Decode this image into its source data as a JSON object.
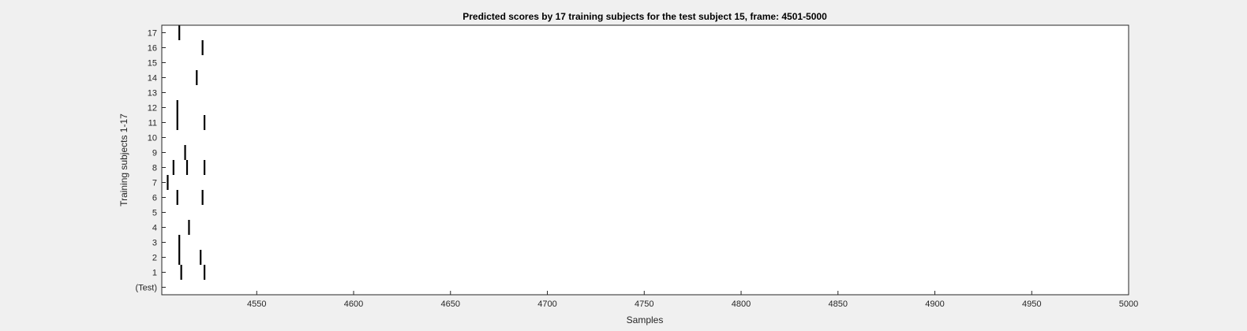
{
  "chart_data": {
    "type": "scatter",
    "title": "Predicted scores by 17 training subjects for the test subject 15, frame: 4501-5000",
    "xlabel": "Samples",
    "ylabel": "Training subjects 1-17",
    "xlim": [
      4501,
      5000
    ],
    "xticks": [
      4550,
      4600,
      4650,
      4700,
      4750,
      4800,
      4850,
      4900,
      4950,
      5000
    ],
    "ylim": [
      -0.5,
      17.5
    ],
    "yticks": [
      0,
      1,
      2,
      3,
      4,
      5,
      6,
      7,
      8,
      9,
      10,
      11,
      12,
      13,
      14,
      15,
      16,
      17
    ],
    "ytick_labels": [
      "(Test)",
      "1",
      "2",
      "3",
      "4",
      "5",
      "6",
      "7",
      "8",
      "9",
      "10",
      "11",
      "12",
      "13",
      "14",
      "15",
      "16",
      "17"
    ],
    "grid": false,
    "background": "#ffffff",
    "mark_color": "#000000",
    "events": [
      {
        "row": 1,
        "x": [
          4511,
          4523
        ]
      },
      {
        "row": 2,
        "x": [
          4510,
          4521
        ]
      },
      {
        "row": 3,
        "x": [
          4510
        ]
      },
      {
        "row": 4,
        "x": [
          4515
        ]
      },
      {
        "row": 5,
        "x": []
      },
      {
        "row": 6,
        "x": [
          4509,
          4522
        ]
      },
      {
        "row": 7,
        "x": [
          4504
        ]
      },
      {
        "row": 8,
        "x": [
          4507,
          4514,
          4523
        ]
      },
      {
        "row": 9,
        "x": [
          4513
        ]
      },
      {
        "row": 10,
        "x": []
      },
      {
        "row": 11,
        "x": [
          4509,
          4523
        ]
      },
      {
        "row": 12,
        "x": [
          4509
        ]
      },
      {
        "row": 13,
        "x": []
      },
      {
        "row": 14,
        "x": [
          4519
        ]
      },
      {
        "row": 15,
        "x": []
      },
      {
        "row": 16,
        "x": [
          4522
        ]
      },
      {
        "row": 17,
        "x": [
          4510
        ]
      }
    ]
  }
}
